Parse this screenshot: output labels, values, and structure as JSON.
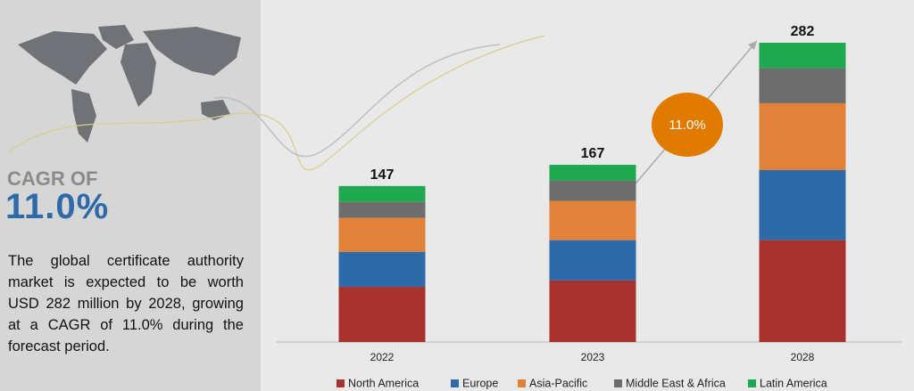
{
  "panel": {
    "cagr_label": "CAGR OF",
    "cagr_value": "11.0%",
    "description": "The global certificate authority market is expected to be worth USD 282 million by 2028, growing at a CAGR of 11.0% during the forecast period."
  },
  "chart_data": {
    "type": "bar",
    "stacked": true,
    "categories": [
      "2022",
      "2023",
      "2028"
    ],
    "series": [
      {
        "name": "North America",
        "color": "#a8322d",
        "values": [
          52,
          58,
          96
        ]
      },
      {
        "name": "Europe",
        "color": "#2e6aa8",
        "values": [
          33,
          38,
          66
        ]
      },
      {
        "name": "Asia-Pacific",
        "color": "#e0823a",
        "values": [
          32,
          37,
          63
        ]
      },
      {
        "name": "Middle East & Africa",
        "color": "#6d6d6d",
        "values": [
          15,
          19,
          33
        ]
      },
      {
        "name": "Latin America",
        "color": "#1fa84f",
        "values": [
          15,
          15,
          24
        ]
      }
    ],
    "totals": [
      147,
      167,
      282
    ],
    "annotation": "11.0%",
    "annotation_color": "#e07b00",
    "ylim": [
      0,
      282
    ],
    "legend": "bottom"
  }
}
